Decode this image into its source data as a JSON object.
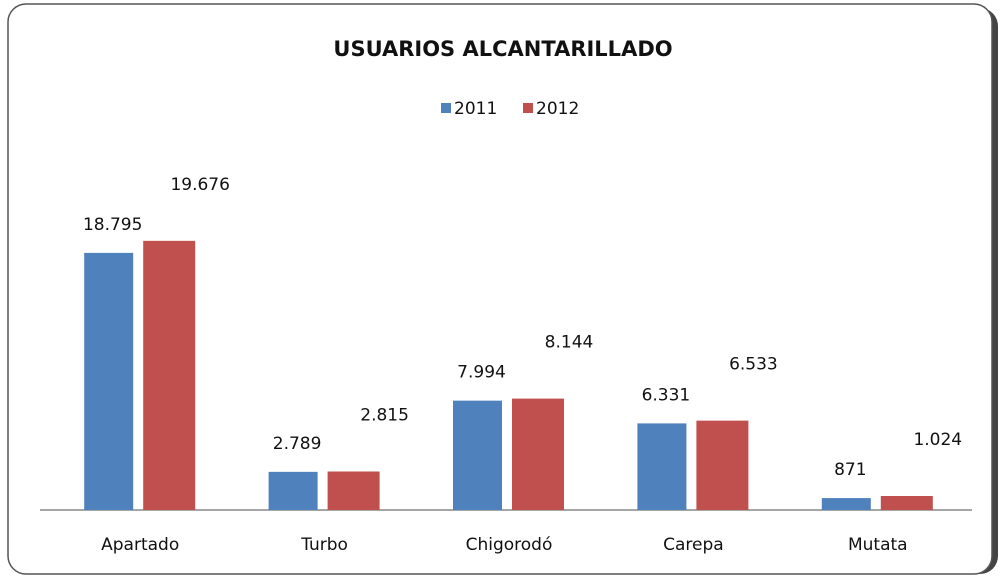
{
  "chart_data": {
    "type": "bar",
    "title": "USUARIOS ALCANTARILLADO",
    "categories": [
      "Apartado",
      "Turbo",
      "Chigorodó",
      "Carepa",
      "Mutata"
    ],
    "series": [
      {
        "name": "2011",
        "color": "#4f81bd",
        "values": [
          18795,
          2789,
          7994,
          6331,
          871
        ],
        "value_labels": [
          "18.795",
          "2.789",
          "7.994",
          "6.331",
          "871"
        ]
      },
      {
        "name": "2012",
        "color": "#c0504d",
        "values": [
          19676,
          2815,
          8144,
          6533,
          1024
        ],
        "value_labels": [
          "19.676",
          "2.815",
          "8.144",
          "6.533",
          "1.024"
        ]
      }
    ],
    "ylim": [
      0,
      25000
    ],
    "legend": "top"
  }
}
